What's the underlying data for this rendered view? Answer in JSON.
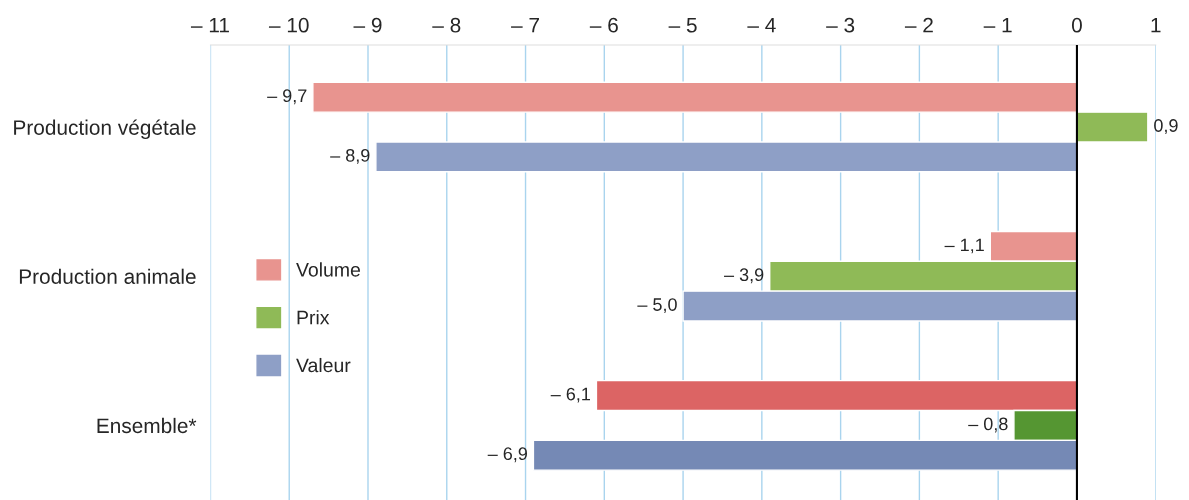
{
  "chart_data": {
    "type": "bar",
    "orientation": "horizontal",
    "categories": [
      "Production végétale",
      "Production animale",
      "Ensemble*"
    ],
    "series": [
      {
        "name": "Volume",
        "color": "#e8948f",
        "colors": [
          "#e8948f",
          "#e8948f",
          "#dc6464"
        ],
        "values": [
          -9.7,
          -1.1,
          -6.1
        ],
        "value_labels": [
          "– 9,7",
          "– 1,1",
          "– 6,1"
        ]
      },
      {
        "name": "Prix",
        "color": "#8fba57",
        "colors": [
          "#8fba57",
          "#8fba57",
          "#559632"
        ],
        "values": [
          0.9,
          -3.9,
          -0.8
        ],
        "value_labels": [
          "0,9",
          "– 3,9",
          "– 0,8"
        ]
      },
      {
        "name": "Valeur",
        "color": "#8e9fc6",
        "colors": [
          "#8e9fc6",
          "#8e9fc6",
          "#7589b5"
        ],
        "values": [
          -8.9,
          -5.0,
          -6.9
        ],
        "value_labels": [
          "– 8,9",
          "– 5,0",
          "– 6,9"
        ]
      }
    ],
    "xlim": [
      -11,
      1
    ],
    "xticks": [
      {
        "value": -11,
        "label": "– 11"
      },
      {
        "value": -10,
        "label": "– 10"
      },
      {
        "value": -9,
        "label": "– 9"
      },
      {
        "value": -8,
        "label": "– 8"
      },
      {
        "value": -7,
        "label": "– 7"
      },
      {
        "value": -6,
        "label": "– 6"
      },
      {
        "value": -5,
        "label": "– 5"
      },
      {
        "value": -4,
        "label": "– 4"
      },
      {
        "value": -3,
        "label": "– 3"
      },
      {
        "value": -2,
        "label": "– 2"
      },
      {
        "value": -1,
        "label": "– 1"
      },
      0,
      1
    ],
    "ref_lines": [
      {
        "axis": "x",
        "value": 0,
        "color": "#000000"
      }
    ],
    "grid": "x",
    "legend": "center left"
  }
}
